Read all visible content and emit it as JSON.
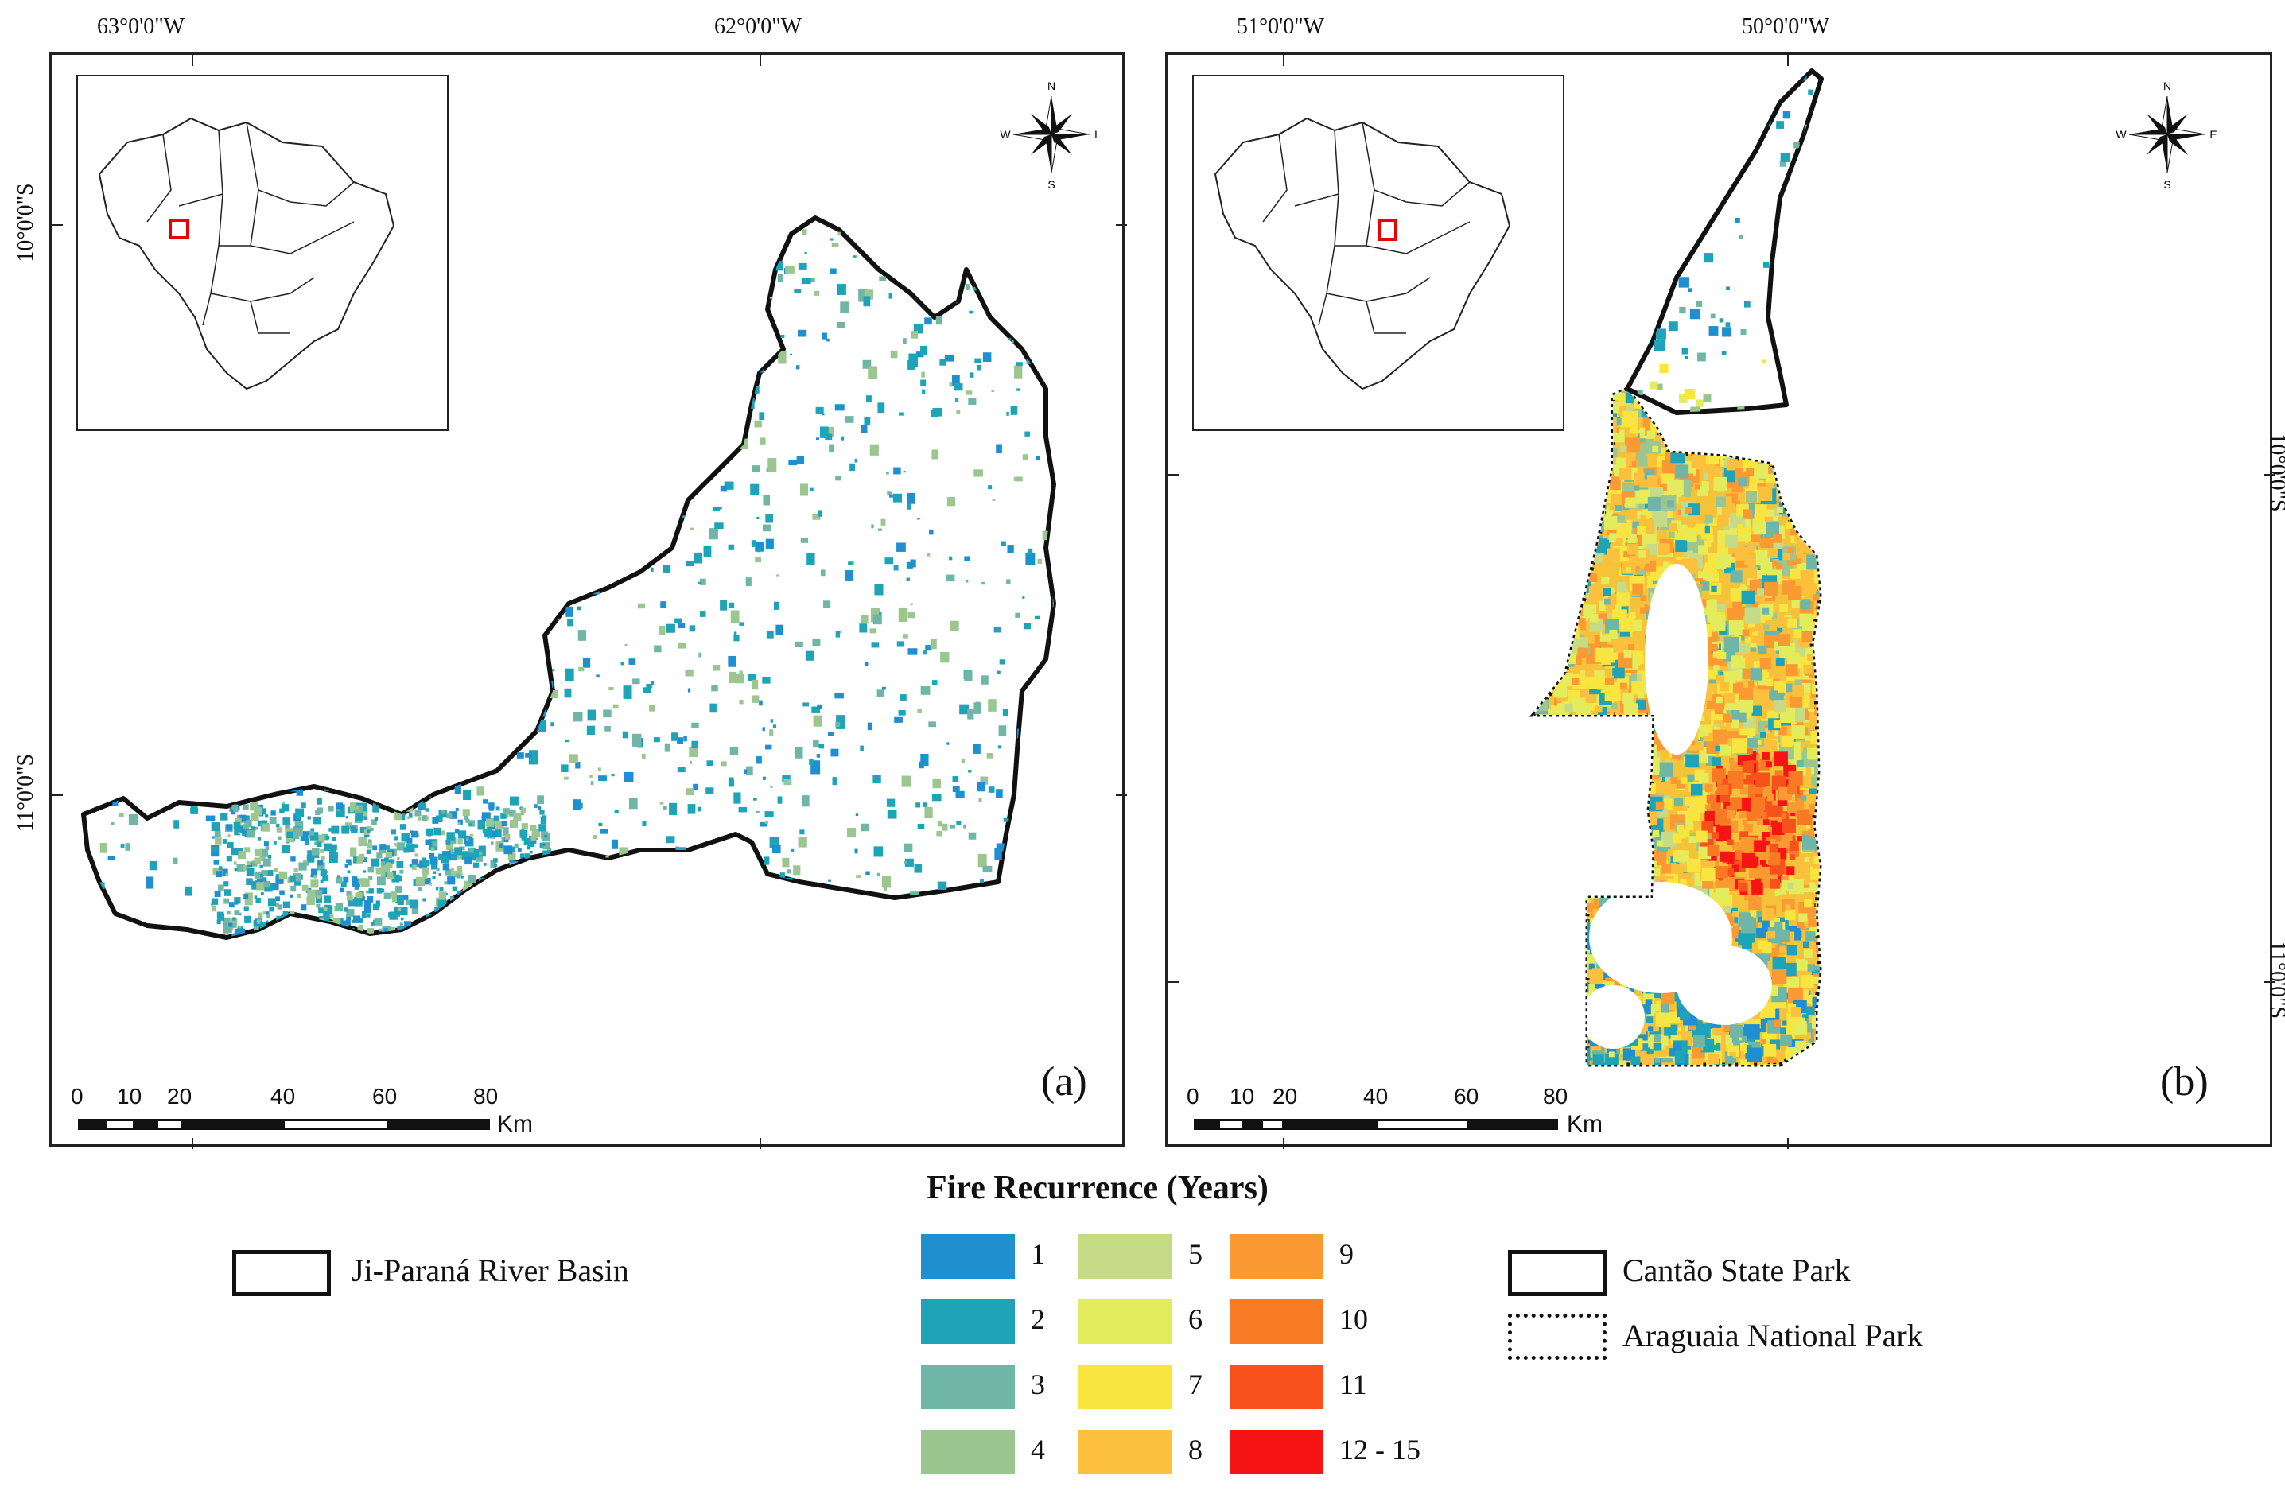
{
  "panel_a": {
    "label": "(a)",
    "top_coords": [
      "63°0'0\"W",
      "62°0'0\"W"
    ],
    "left_coords": [
      "10°0'0\"S",
      "11°0'0\"S"
    ],
    "scale_ticks": [
      "0",
      "10",
      "20",
      "40",
      "60",
      "80"
    ],
    "scale_unit": "Km",
    "compass": {
      "n": "N",
      "s": "S",
      "e": "L",
      "w": "W"
    }
  },
  "panel_b": {
    "label": "(b)",
    "top_coords": [
      "51°0'0\"W",
      "50°0'0\"W"
    ],
    "right_coords": [
      "10°0'0\"S",
      "11°0'0\"S"
    ],
    "scale_ticks": [
      "0",
      "10",
      "20",
      "40",
      "60",
      "80"
    ],
    "scale_unit": "Km",
    "compass": {
      "n": "N",
      "s": "S",
      "e": "E",
      "w": "W"
    }
  },
  "legend": {
    "title": "Fire Recurrence (Years)",
    "classes": [
      {
        "label": "1",
        "color": "#1f8fcf"
      },
      {
        "label": "2",
        "color": "#1ea3b8"
      },
      {
        "label": "3",
        "color": "#6fb6a6"
      },
      {
        "label": "4",
        "color": "#9cc68f"
      },
      {
        "label": "5",
        "color": "#c6db86"
      },
      {
        "label": "6",
        "color": "#e3ec5c"
      },
      {
        "label": "7",
        "color": "#f8e540"
      },
      {
        "label": "8",
        "color": "#fcc03c"
      },
      {
        "label": "9",
        "color": "#fb9a33"
      },
      {
        "label": "10",
        "color": "#f97a25"
      },
      {
        "label": "11",
        "color": "#f7521c"
      },
      {
        "label": "12 - 15",
        "color": "#f71414"
      }
    ],
    "boundaries": {
      "ji_parana": "Ji-Paraná River Basin",
      "cantao": "Cantão State Park",
      "araguaia": "Araguaia National Park"
    }
  }
}
